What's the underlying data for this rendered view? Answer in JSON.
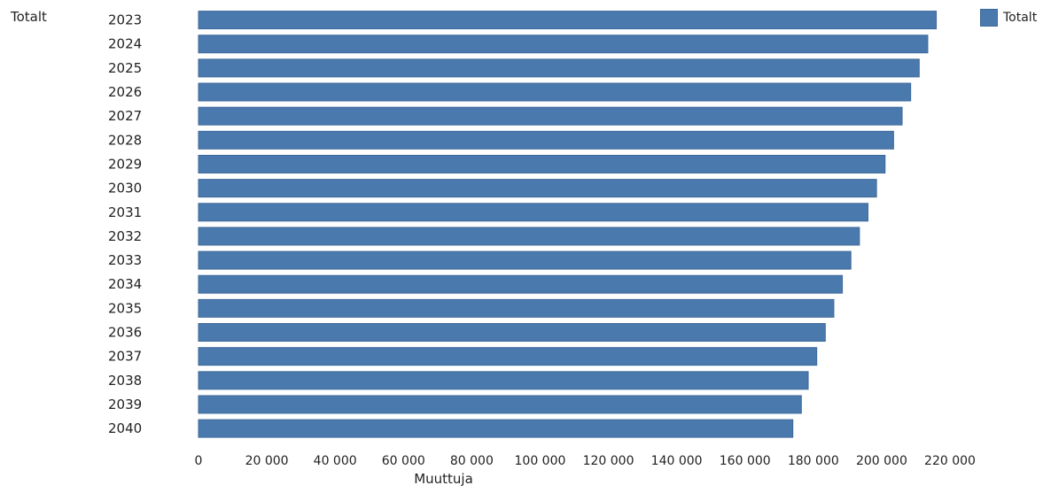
{
  "chart_data": {
    "type": "bar",
    "orientation": "horizontal",
    "group_label": "Totalt",
    "categories": [
      "2023",
      "2024",
      "2025",
      "2026",
      "2027",
      "2028",
      "2029",
      "2030",
      "2031",
      "2032",
      "2033",
      "2034",
      "2035",
      "2036",
      "2037",
      "2038",
      "2039",
      "2040"
    ],
    "series": [
      {
        "name": "Totalt",
        "color": "#4a79ad",
        "values": [
          216000,
          213500,
          211000,
          208500,
          206000,
          203500,
          201000,
          198500,
          196000,
          193500,
          191000,
          188500,
          186000,
          183500,
          181000,
          178500,
          176500,
          174000
        ]
      }
    ],
    "xlim": [
      0,
      220000
    ],
    "xticks": [
      0,
      20000,
      40000,
      60000,
      80000,
      100000,
      120000,
      140000,
      160000,
      180000,
      200000,
      220000
    ],
    "xtick_labels": [
      "0",
      "20 000",
      "40 000",
      "60 000",
      "80 000",
      "100 000",
      "120 000",
      "140 000",
      "160 000",
      "180 000",
      "200 000",
      "220 000"
    ],
    "xlabel": "Muuttuja",
    "grid": false,
    "legend_position": "top-right"
  }
}
